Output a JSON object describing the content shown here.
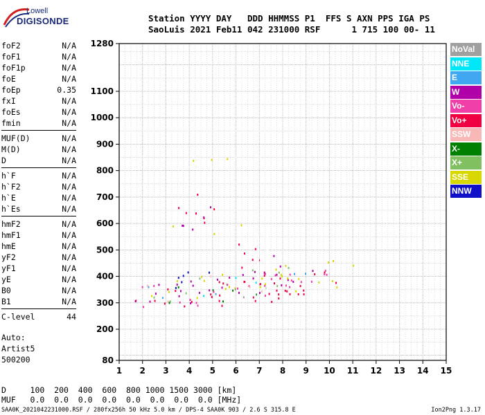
{
  "logo": {
    "line1": "Lowell",
    "line2": "DIGISONDE"
  },
  "header": {
    "labels": [
      "Station",
      "YYYY",
      "DAY",
      "DDD",
      "HHMMSS",
      "P1",
      "FFS",
      "S",
      "AXN",
      "PPS",
      "IGA",
      "PS"
    ],
    "values": [
      "SaoLuis",
      "2021",
      "Feb11",
      "042",
      "231000",
      "RSF",
      "1",
      "715",
      "100",
      "00-",
      "11"
    ],
    "line1": "Station YYYY DAY   DDD HHMMSS P1  FFS S AXN PPS IGA PS",
    "line2": "SaoLuis 2021 Feb11 042 231000 RSF      1 715 100 00- 11"
  },
  "params": {
    "group1": [
      {
        "name": "foF2",
        "value": "N/A"
      },
      {
        "name": "foF1",
        "value": "N/A"
      },
      {
        "name": "foF1p",
        "value": "N/A"
      },
      {
        "name": "foE",
        "value": "N/A"
      },
      {
        "name": "foEp",
        "value": "0.35"
      },
      {
        "name": "fxI",
        "value": "N/A"
      },
      {
        "name": "foEs",
        "value": "N/A"
      },
      {
        "name": "fmin",
        "value": "N/A"
      }
    ],
    "group2": [
      {
        "name": "MUF(D)",
        "value": "N/A"
      },
      {
        "name": "M(D)",
        "value": "N/A"
      },
      {
        "name": "D",
        "value": "N/A"
      }
    ],
    "group3": [
      {
        "name": "h`F",
        "value": "N/A"
      },
      {
        "name": "h`F2",
        "value": "N/A"
      },
      {
        "name": "h`E",
        "value": "N/A"
      },
      {
        "name": "h`Es",
        "value": "N/A"
      }
    ],
    "group4": [
      {
        "name": "hmF2",
        "value": "N/A"
      },
      {
        "name": "hmF1",
        "value": "N/A"
      },
      {
        "name": "hmE",
        "value": "N/A"
      },
      {
        "name": "yF2",
        "value": "N/A"
      },
      {
        "name": "yF1",
        "value": "N/A"
      },
      {
        "name": "yE",
        "value": "N/A"
      },
      {
        "name": "B0",
        "value": "N/A"
      },
      {
        "name": "B1",
        "value": "N/A"
      }
    ],
    "clevel": {
      "name": "C-level",
      "value": "44"
    }
  },
  "auto": {
    "line1": "Auto:",
    "line2": "Artist5",
    "line3": "500200"
  },
  "legend": [
    {
      "label": "NoVal",
      "color": "#a0a0a0"
    },
    {
      "label": "NNE",
      "color": "#00e8f8"
    },
    {
      "label": "E",
      "color": "#40a8f0"
    },
    {
      "label": "W",
      "color": "#b000a8"
    },
    {
      "label": "Vo-",
      "color": "#f040a8"
    },
    {
      "label": "Vo+",
      "color": "#f00040"
    },
    {
      "label": "SSW",
      "color": "#f8b8b8"
    },
    {
      "label": "X-",
      "color": "#008000"
    },
    {
      "label": "X+",
      "color": "#80c060"
    },
    {
      "label": "SSE",
      "color": "#d8d800"
    },
    {
      "label": "NNW",
      "color": "#1010c8"
    }
  ],
  "muf_table": {
    "d_line": "D     100  200  400  600  800 1000 1500 3000 [km]",
    "muf_line": "MUF   0.0  0.0  0.0  0.0  0.0  0.0  0.0  0.0 [MHz]"
  },
  "footer": {
    "text": "SAA0K_2021042231000.RSF / 280fx256h 50 kHz 5.0 km / DPS-4 SAA0K 903 / 2.6 S 315.8 E",
    "version": "Ion2Png 1.3.17"
  },
  "chart_data": {
    "type": "scatter",
    "xlim": [
      1,
      15
    ],
    "ylim": [
      80,
      1280
    ],
    "x_ticks": [
      "1",
      "2",
      "3",
      "4",
      "5",
      "6",
      "7",
      "8",
      "9",
      "10",
      "11",
      "12",
      "13",
      "14",
      "15"
    ],
    "y_ticks": [
      "80",
      "200",
      "300",
      "400",
      "500",
      "600",
      "700",
      "800",
      "900",
      "1000",
      "1100",
      "1280"
    ],
    "grid": true,
    "legend_position": "right",
    "series": [
      {
        "name": "Vo+",
        "clusters": [
          {
            "x": [
              1.5,
              10.5
            ],
            "y": [
              260,
              430
            ]
          },
          {
            "x": [
              3.5,
              5.2
            ],
            "y": [
              560,
              720
            ]
          },
          {
            "x": [
              6,
              7.2
            ],
            "y": [
              300,
              540
            ]
          }
        ]
      },
      {
        "name": "W",
        "clusters": [
          {
            "x": [
              1.6,
              9.5
            ],
            "y": [
              280,
              410
            ]
          },
          {
            "x": [
              3.5,
              5.3
            ],
            "y": [
              580,
              700
            ]
          },
          {
            "x": [
              7.5,
              8.5
            ],
            "y": [
              330,
              500
            ]
          }
        ]
      },
      {
        "name": "NNW",
        "clusters": [
          {
            "x": [
              2.5,
              6.5
            ],
            "y": [
              340,
              420
            ]
          }
        ]
      },
      {
        "name": "SSE",
        "clusters": [
          {
            "x": [
              2,
              10.5
            ],
            "y": [
              290,
              440
            ]
          },
          {
            "x": [
              3.2,
              6.5
            ],
            "y": [
              560,
              610
            ]
          },
          {
            "x": [
              3.2,
              6.5
            ],
            "y": [
              800,
              850
            ]
          },
          {
            "x": [
              9.8,
              11.3
            ],
            "y": [
              360,
              450
            ]
          }
        ]
      },
      {
        "name": "X+",
        "clusters": [
          {
            "x": [
              2,
              9.5
            ],
            "y": [
              290,
              400
            ]
          }
        ]
      },
      {
        "name": "X-",
        "clusters": [
          {
            "x": [
              2,
              8
            ],
            "y": [
              300,
              380
            ]
          }
        ]
      },
      {
        "name": "Vo-",
        "clusters": [
          {
            "x": [
              1.6,
              10
            ],
            "y": [
              270,
              430
            ]
          }
        ]
      },
      {
        "name": "E",
        "clusters": [
          {
            "x": [
              2,
              9
            ],
            "y": [
              300,
              420
            ]
          }
        ]
      },
      {
        "name": "NNE",
        "clusters": [
          {
            "x": [
              2.5,
              8
            ],
            "y": [
              310,
              400
            ]
          }
        ]
      },
      {
        "name": "SSW",
        "clusters": [
          {
            "x": [
              2,
              9
            ],
            "y": [
              290,
              400
            ]
          }
        ]
      },
      {
        "name": "NoVal",
        "clusters": [
          {
            "x": [
              3,
              8
            ],
            "y": [
              320,
              380
            ]
          }
        ]
      }
    ]
  }
}
